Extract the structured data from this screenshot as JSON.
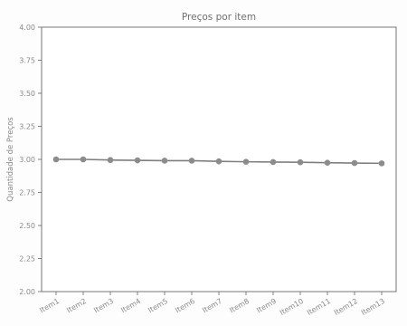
{
  "chart_data": {
    "type": "line",
    "title": "Preços por item",
    "xlabel": "",
    "ylabel": "Quantidade de Preços",
    "categories": [
      "Item1",
      "Item2",
      "Item3",
      "Item4",
      "Item5",
      "Item6",
      "Item7",
      "Item8",
      "Item9",
      "Item10",
      "Item11",
      "Item12",
      "Item13"
    ],
    "series": [
      {
        "values": [
          3.0,
          3.0,
          2.995,
          2.993,
          2.99,
          2.99,
          2.985,
          2.982,
          2.98,
          2.978,
          2.975,
          2.972,
          2.97
        ]
      }
    ],
    "ylim": [
      2.0,
      4.0
    ],
    "yticks": [
      "2.00",
      "2.25",
      "2.50",
      "2.75",
      "3.00",
      "3.25",
      "3.50",
      "3.75",
      "4.00"
    ],
    "grid": false,
    "line_color": "#7f7f7f",
    "marker_color": "#8c8c8c"
  }
}
